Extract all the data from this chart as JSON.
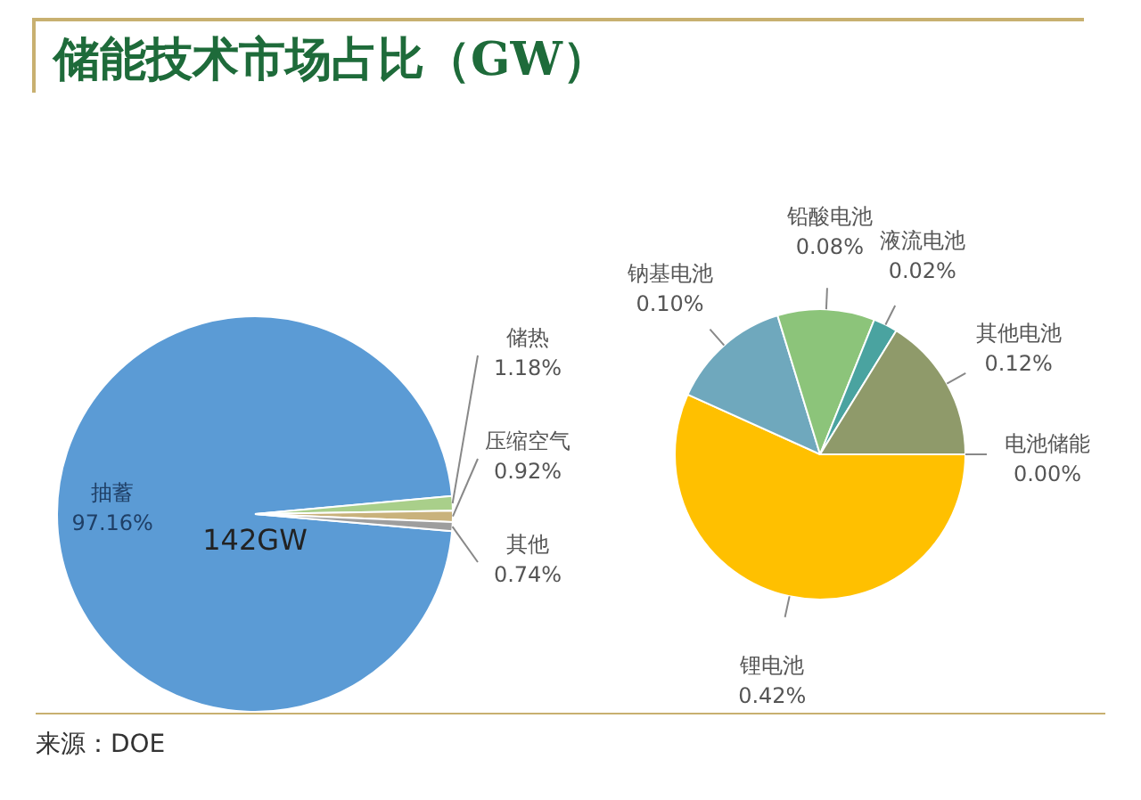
{
  "chart_data": [
    {
      "type": "pie",
      "title": "储能技术市场占比（GW）",
      "categories": [
        "抽蓄",
        "储热",
        "压缩空气",
        "其他"
      ],
      "values": [
        97.16,
        1.18,
        0.92,
        0.74
      ],
      "value_labels": [
        "97.16%",
        "1.18%",
        "0.92%",
        "0.74%"
      ],
      "colors": [
        "#5b9bd5",
        "#a9cf8a",
        "#c9b27c",
        "#9e9e9e"
      ],
      "annotations": [
        {
          "text": "142GW",
          "x": "抽蓄"
        },
        "来源：DOE"
      ]
    },
    {
      "type": "pie",
      "categories": [
        "锂电池",
        "钠基电池",
        "铅酸电池",
        "液流电池",
        "其他电池",
        "电池储能"
      ],
      "values": [
        0.42,
        0.1,
        0.08,
        0.02,
        0.12,
        0.0
      ],
      "value_labels": [
        "0.42%",
        "0.10%",
        "0.08%",
        "0.02%",
        "0.12%",
        "0.00%"
      ],
      "colors": [
        "#ffc000",
        "#6fa8bd",
        "#8cc47a",
        "#4aa3a0",
        "#8f9a6a",
        "#5b9bd5"
      ]
    }
  ]
}
